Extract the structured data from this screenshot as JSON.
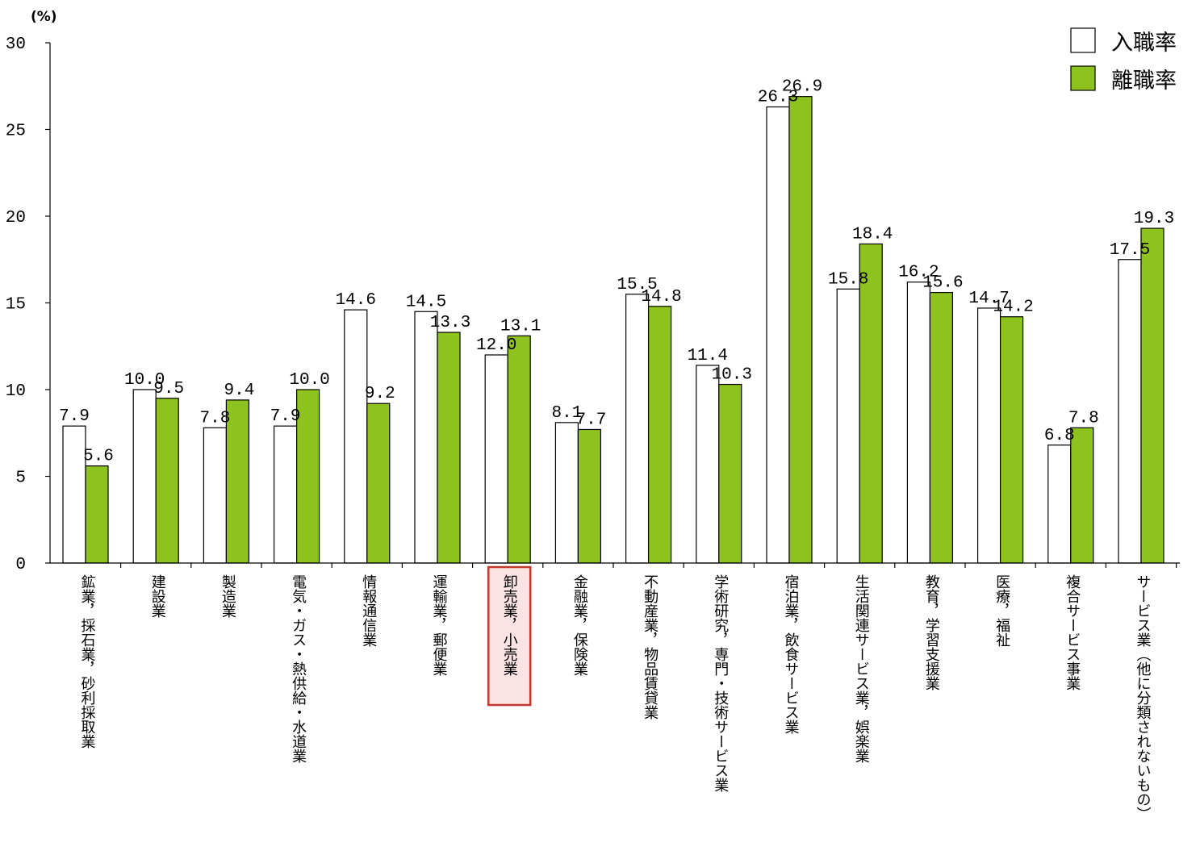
{
  "chart_data": {
    "type": "bar",
    "unit_label": "(%)",
    "ylim": [
      0,
      30
    ],
    "yticks": [
      "0",
      "5",
      "10",
      "15",
      "20",
      "25",
      "30"
    ],
    "highlight_category": "卸売業，小売業",
    "categories": [
      "鉱業，採石業，砂利採取業",
      "建設業",
      "製造業",
      "電気・ガス・熱供給・水道業",
      "情報通信業",
      "運輸業，郵便業",
      "卸売業，小売業",
      "金融業，保険業",
      "不動産業，物品賃貸業",
      "学術研究，専門・技術サービス業",
      "宿泊業，飲食サービス業",
      "生活関連サービス業，娯楽業",
      "教育，学習支援業",
      "医療，福祉",
      "複合サービス事業",
      "サービス業（他に分類されないもの）"
    ],
    "series": [
      {
        "name": "入職率",
        "color": "#ffffff",
        "values": [
          7.9,
          10.0,
          7.8,
          7.9,
          14.6,
          14.5,
          12.0,
          8.1,
          15.5,
          11.4,
          26.3,
          15.8,
          16.2,
          14.7,
          6.8,
          17.5
        ],
        "labels": [
          "7.9",
          "10.0",
          "7.8",
          "7.9",
          "14.6",
          "14.5",
          "12.0",
          "8.1",
          "15.5",
          "11.4",
          "26.3",
          "15.8",
          "16.2",
          "14.7",
          "6.8",
          "17.5"
        ]
      },
      {
        "name": "離職率",
        "color": "#8dc21f",
        "values": [
          5.6,
          9.5,
          9.4,
          10.0,
          9.2,
          13.3,
          13.1,
          7.7,
          14.8,
          10.3,
          26.9,
          18.4,
          15.6,
          14.2,
          7.8,
          19.3
        ],
        "labels": [
          "5.6",
          "9.5",
          "9.4",
          "10.0",
          "9.2",
          "13.3",
          "13.1",
          "7.7",
          "14.8",
          "10.3",
          "26.9",
          "18.4",
          "15.6",
          "14.2",
          "7.8",
          "19.3"
        ]
      }
    ]
  }
}
